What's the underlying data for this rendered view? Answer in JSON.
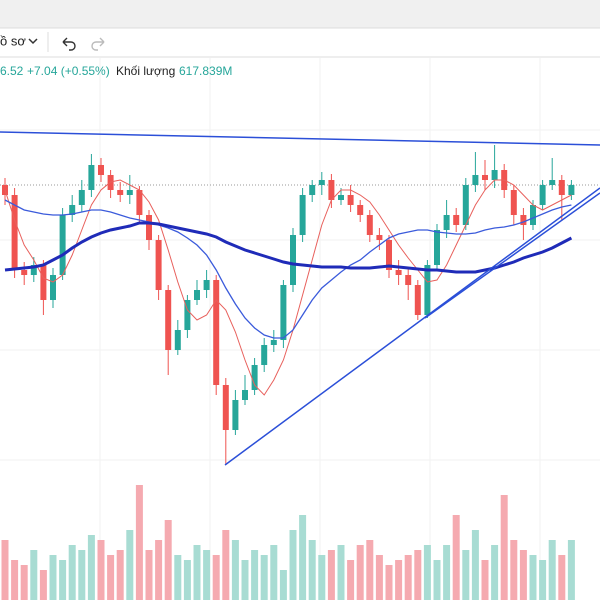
{
  "toolbar": {
    "profile": "ồ sơ"
  },
  "legend": {
    "price": "6.52",
    "change": "+7.04 (+0.55%)",
    "volume_label": "Khối lượng",
    "volume_value": "617.839M"
  },
  "chart_data": {
    "type": "candlestick",
    "ylim": [
      120,
      540
    ],
    "vlim": [
      0,
      120
    ],
    "up_color": "#26a69a",
    "down_color": "#ef5350",
    "volume_up_color": "#a8dcd3",
    "volume_down_color": "#f5aab0",
    "open": [
      415,
      405,
      330,
      325,
      335,
      300,
      325,
      385,
      395,
      410,
      435,
      425,
      410,
      405,
      410,
      385,
      360,
      310,
      250,
      270,
      300,
      310,
      320,
      215,
      170,
      200,
      210,
      235,
      255,
      260,
      315,
      365,
      405,
      415,
      420,
      400,
      405,
      395,
      385,
      365,
      360,
      330,
      325,
      315,
      285,
      335,
      370,
      385,
      375,
      415,
      425,
      420,
      430,
      410,
      385,
      375,
      395,
      415,
      420,
      405
    ],
    "high": [
      422,
      412,
      338,
      343,
      340,
      332,
      392,
      405,
      420,
      446,
      442,
      430,
      418,
      425,
      414,
      390,
      365,
      315,
      280,
      305,
      320,
      330,
      325,
      222,
      210,
      225,
      242,
      262,
      270,
      320,
      372,
      412,
      420,
      428,
      426,
      412,
      415,
      400,
      390,
      372,
      365,
      340,
      332,
      320,
      340,
      376,
      400,
      392,
      422,
      448,
      440,
      455,
      436,
      415,
      392,
      400,
      420,
      442,
      425,
      420
    ],
    "low": [
      395,
      322,
      315,
      318,
      285,
      292,
      320,
      378,
      388,
      403,
      418,
      402,
      398,
      396,
      378,
      350,
      300,
      225,
      245,
      262,
      295,
      302,
      205,
      135,
      165,
      195,
      205,
      228,
      248,
      252,
      308,
      358,
      398,
      405,
      392,
      395,
      388,
      378,
      358,
      350,
      322,
      315,
      300,
      280,
      282,
      330,
      362,
      368,
      370,
      408,
      410,
      412,
      402,
      375,
      360,
      370,
      390,
      410,
      380,
      400
    ],
    "close": [
      405,
      330,
      325,
      335,
      300,
      325,
      385,
      395,
      410,
      435,
      425,
      410,
      405,
      410,
      385,
      360,
      310,
      250,
      270,
      300,
      310,
      320,
      215,
      170,
      200,
      210,
      235,
      255,
      260,
      315,
      365,
      405,
      415,
      420,
      400,
      405,
      395,
      385,
      365,
      360,
      330,
      325,
      315,
      285,
      335,
      370,
      385,
      375,
      415,
      425,
      420,
      430,
      410,
      385,
      375,
      395,
      415,
      420,
      405,
      415
    ],
    "volume": [
      60,
      40,
      35,
      50,
      30,
      45,
      40,
      55,
      50,
      65,
      60,
      45,
      50,
      70,
      115,
      50,
      60,
      80,
      45,
      40,
      55,
      50,
      45,
      70,
      60,
      40,
      50,
      45,
      55,
      30,
      70,
      85,
      60,
      45,
      50,
      55,
      40,
      55,
      60,
      45,
      35,
      40,
      45,
      50,
      55,
      40,
      55,
      85,
      50,
      70,
      40,
      55,
      105,
      60,
      50,
      45,
      40,
      60,
      45,
      60
    ],
    "series": [
      {
        "color": "#e8605c",
        "width": 1,
        "values": [
          410,
          380,
          355,
          340,
          322,
          318,
          325,
          345,
          370,
          395,
          410,
          418,
          420,
          415,
          410,
          398,
          380,
          350,
          318,
          290,
          280,
          285,
          300,
          290,
          268,
          240,
          215,
          205,
          220,
          240,
          270,
          305,
          340,
          375,
          400,
          410,
          410,
          405,
          398,
          385,
          370,
          355,
          342,
          330,
          318,
          320,
          335,
          355,
          375,
          395,
          410,
          420,
          420,
          415,
          405,
          395,
          390,
          395,
          400,
          405
        ]
      },
      {
        "color": "#3b5bdb",
        "width": 1.3,
        "values": [
          400,
          395,
          390,
          388,
          386,
          385,
          385,
          386,
          388,
          390,
          390,
          388,
          385,
          382,
          380,
          378,
          375,
          372,
          368,
          362,
          355,
          345,
          330,
          312,
          296,
          282,
          272,
          265,
          262,
          262,
          270,
          285,
          300,
          312,
          320,
          328,
          335,
          340,
          348,
          355,
          362,
          366,
          368,
          370,
          370,
          368,
          367,
          366,
          366,
          367,
          370,
          372,
          373,
          375,
          378,
          382,
          386,
          390,
          393,
          395
        ]
      },
      {
        "color": "#1f2bb8",
        "width": 3,
        "values": [
          330,
          331,
          332,
          333,
          335,
          340,
          345,
          352,
          358,
          363,
          367,
          370,
          372,
          374,
          377,
          377,
          376,
          374,
          372,
          370,
          368,
          366,
          363,
          358,
          354,
          350,
          347,
          344,
          341,
          338,
          336,
          335,
          334,
          333,
          333,
          333,
          332,
          332,
          332,
          333,
          334,
          333,
          332,
          331,
          330,
          330,
          329,
          328,
          328,
          328,
          330,
          332,
          335,
          338,
          342,
          345,
          348,
          352,
          357,
          362
        ]
      }
    ]
  }
}
